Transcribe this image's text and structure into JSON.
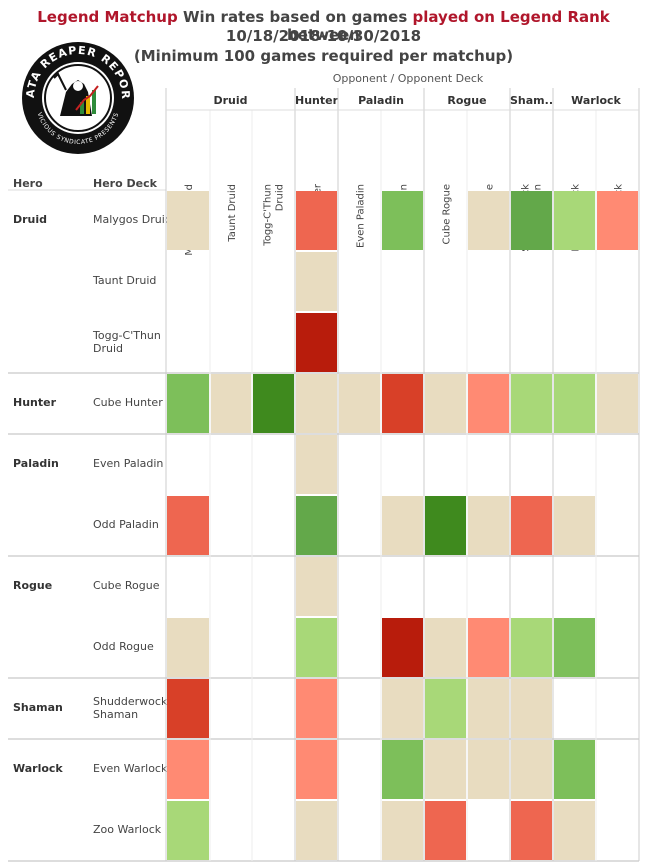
{
  "title": {
    "part1_red": "Legend Matchup",
    "part2": "Win rates based on games",
    "part3_red": "played on Legend Rank",
    "part4": "between",
    "line2": "10/18/2018-10/30/2018",
    "line3": "(Minimum 100 games required per matchup)"
  },
  "logo": {
    "text_top": "DATA REAPER REPORT",
    "text_bottom": "VICIOUS SYNDICATE PRESENTS"
  },
  "header": {
    "opponent_caption": "Opponent  /  Opponent Deck",
    "hero_col": "Hero",
    "deck_col": "Hero Deck"
  },
  "colors": {
    "strong_win": "#3f8a1e",
    "win": "#63a84a",
    "mild_win": "#7dbf5a",
    "slight_win": "#a8d878",
    "even": "#e8dcc0",
    "slight_loss": "#ff8a73",
    "loss": "#ee6650",
    "mild_loss": "#d84028",
    "strong_loss": "#b81c0c"
  },
  "chart_data": {
    "type": "heatmap",
    "opponent_groups": [
      {
        "hero": "Druid",
        "decks": [
          "Malygos Druid",
          "Taunt Druid",
          "Togg-C'Thun Druid"
        ]
      },
      {
        "hero": "Hunter",
        "decks": [
          "Cube Hunter"
        ]
      },
      {
        "hero": "Paladin",
        "decks": [
          "Even Paladin",
          "Odd Paladin"
        ]
      },
      {
        "hero": "Rogue",
        "decks": [
          "Cube Rogue",
          "Odd Rogue"
        ]
      },
      {
        "hero": "Sham..",
        "decks": [
          "Shudderwock Shaman"
        ]
      },
      {
        "hero": "Warlock",
        "decks": [
          "Even Warlock",
          "Zoo Warlock"
        ]
      }
    ],
    "hero_groups": [
      {
        "hero": "Druid",
        "decks": [
          "Malygos Druid",
          "Taunt Druid",
          "Togg-C'Thun Druid"
        ]
      },
      {
        "hero": "Hunter",
        "decks": [
          "Cube Hunter"
        ]
      },
      {
        "hero": "Paladin",
        "decks": [
          "Even Paladin",
          "Odd Paladin"
        ]
      },
      {
        "hero": "Rogue",
        "decks": [
          "Cube Rogue",
          "Odd Rogue"
        ]
      },
      {
        "hero": "Shaman",
        "decks": [
          "Shudderwock Shaman"
        ]
      },
      {
        "hero": "Warlock",
        "decks": [
          "Even Warlock",
          "Zoo Warlock"
        ]
      }
    ],
    "cells": [
      [
        "even",
        null,
        null,
        "loss",
        null,
        "mild_win",
        null,
        "even",
        "win",
        "slight_win",
        "slight_loss"
      ],
      [
        null,
        null,
        null,
        "even",
        null,
        null,
        null,
        null,
        null,
        null,
        null
      ],
      [
        null,
        null,
        null,
        "strong_loss",
        null,
        null,
        null,
        null,
        null,
        null,
        null
      ],
      [
        "mild_win",
        "even",
        "strong_win",
        "even",
        "even",
        "mild_loss",
        "even",
        "slight_loss",
        "slight_win",
        "slight_win",
        "even"
      ],
      [
        null,
        null,
        null,
        "even",
        null,
        null,
        null,
        null,
        null,
        null,
        null
      ],
      [
        "loss",
        null,
        null,
        "win",
        null,
        "even",
        "strong_win",
        "even",
        "loss",
        "even",
        null
      ],
      [
        null,
        null,
        null,
        "even",
        null,
        null,
        null,
        null,
        null,
        null,
        null
      ],
      [
        "even",
        null,
        null,
        "slight_win",
        null,
        "strong_loss",
        "even",
        "slight_loss",
        "slight_win",
        "mild_win",
        null
      ],
      [
        "mild_loss",
        null,
        null,
        "slight_loss",
        null,
        "even",
        "slight_win",
        "even",
        "even",
        null,
        null
      ],
      [
        "slight_loss",
        null,
        null,
        "slight_loss",
        null,
        "mild_win",
        "even",
        "even",
        "even",
        "mild_win",
        null
      ],
      [
        "slight_win",
        null,
        null,
        "even",
        null,
        "even",
        "loss",
        null,
        "loss",
        "even",
        null
      ]
    ]
  }
}
